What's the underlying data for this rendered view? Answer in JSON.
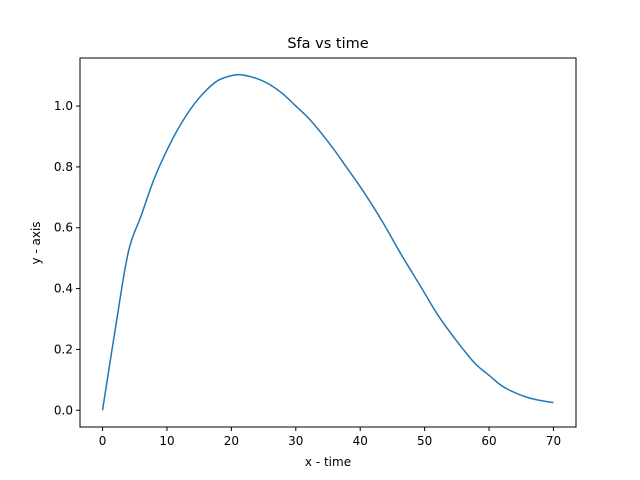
{
  "chart_data": {
    "type": "line",
    "title": "Sfa vs time",
    "xlabel": "x - time",
    "ylabel": "y - axis",
    "xlim": [
      -3.5,
      73.5
    ],
    "ylim": [
      -0.055,
      1.158
    ],
    "xticks": [
      0,
      10,
      20,
      30,
      40,
      50,
      60,
      70
    ],
    "yticks": [
      0.0,
      0.2,
      0.4,
      0.6,
      0.8,
      1.0
    ],
    "xtick_labels": [
      "0",
      "10",
      "20",
      "30",
      "40",
      "50",
      "60",
      "70"
    ],
    "ytick_labels": [
      "0.0",
      "0.2",
      "0.4",
      "0.6",
      "0.8",
      "1.0"
    ],
    "grid": false,
    "series": [
      {
        "color": "#1f77b4",
        "x": [
          0,
          2,
          4,
          6,
          8,
          10,
          12,
          14,
          16,
          18,
          20,
          21.5,
          24,
          26,
          28,
          30,
          32,
          34,
          36,
          38,
          40,
          42,
          44,
          46,
          48,
          50,
          52,
          54,
          56,
          58,
          60,
          62,
          64,
          66,
          68,
          70
        ],
        "y": [
          0.0,
          0.27,
          0.52,
          0.64,
          0.76,
          0.855,
          0.935,
          1.0,
          1.05,
          1.085,
          1.1,
          1.103,
          1.09,
          1.07,
          1.04,
          1.0,
          0.96,
          0.91,
          0.855,
          0.795,
          0.735,
          0.67,
          0.6,
          0.525,
          0.455,
          0.385,
          0.315,
          0.255,
          0.2,
          0.15,
          0.115,
          0.08,
          0.058,
          0.042,
          0.032,
          0.025
        ]
      }
    ]
  }
}
